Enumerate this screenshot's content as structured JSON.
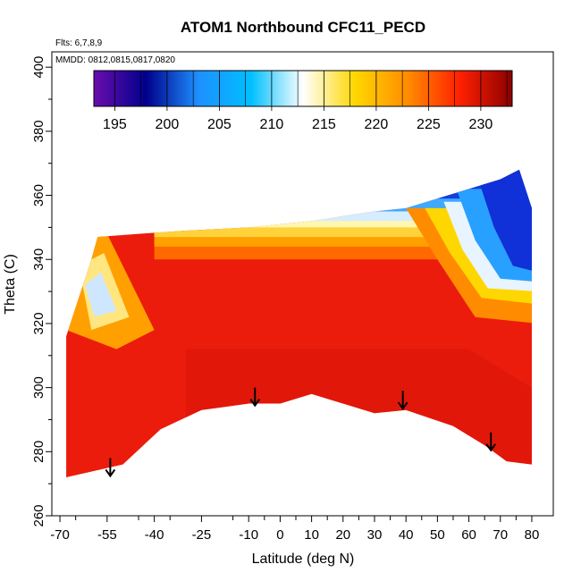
{
  "chart_data": {
    "type": "heatmap",
    "title": "ATOM1 Northbound CFC11_PECD",
    "note_flights": "Flts: 6,7,8,9",
    "note_dates": "MMDD: 0812,0815,0817,0820",
    "xlabel": "Latitude (deg N)",
    "ylabel": "Theta (C)",
    "xlim": [
      -72,
      82
    ],
    "ylim": [
      260,
      402
    ],
    "x_ticks": [
      -70,
      -55,
      -40,
      -25,
      -10,
      0,
      10,
      20,
      30,
      40,
      50,
      60,
      70,
      80
    ],
    "x_tick_labels": [
      "-70",
      "-55",
      "-40",
      "-25",
      "-10",
      "0",
      "10",
      "20",
      "30",
      "40",
      "50",
      "60",
      "70",
      "80"
    ],
    "y_ticks": [
      260,
      280,
      300,
      320,
      340,
      360,
      380,
      400
    ],
    "y_tick_labels": [
      "260",
      "280",
      "300",
      "320",
      "340",
      "360",
      "380",
      "400"
    ],
    "colorbar": {
      "range": [
        193,
        233
      ],
      "ticks": [
        195,
        200,
        205,
        210,
        215,
        220,
        225,
        230
      ],
      "tick_labels": [
        "195",
        "200",
        "205",
        "210",
        "215",
        "220",
        "225",
        "230"
      ],
      "colors": [
        "#6a0dad",
        "#00008b",
        "#1e90ff",
        "#00bfff",
        "#ffffff",
        "#ffd700",
        "#ff8c00",
        "#ff2000",
        "#8b0000"
      ]
    },
    "region_bottom": [
      [
        -68,
        272
      ],
      [
        -50,
        276
      ],
      [
        -38,
        287
      ],
      [
        -25,
        293
      ],
      [
        -10,
        295
      ],
      [
        0,
        295
      ],
      [
        10,
        298
      ],
      [
        20,
        295
      ],
      [
        30,
        292
      ],
      [
        40,
        293
      ],
      [
        55,
        288
      ],
      [
        65,
        282
      ],
      [
        72,
        277
      ],
      [
        80,
        276
      ]
    ],
    "region_top": [
      [
        -68,
        316
      ],
      [
        -60,
        340
      ],
      [
        -58,
        347
      ],
      [
        -45,
        348
      ],
      [
        -30,
        349
      ],
      [
        -10,
        350
      ],
      [
        10,
        352
      ],
      [
        30,
        355
      ],
      [
        40,
        356
      ],
      [
        50,
        359
      ],
      [
        60,
        362
      ],
      [
        70,
        365
      ],
      [
        76,
        368
      ],
      [
        80,
        356
      ]
    ],
    "arrows": [
      {
        "lat": -54,
        "theta": 278
      },
      {
        "lat": -8,
        "theta": 300
      },
      {
        "lat": 39,
        "theta": 299
      },
      {
        "lat": 67,
        "theta": 286
      }
    ]
  }
}
